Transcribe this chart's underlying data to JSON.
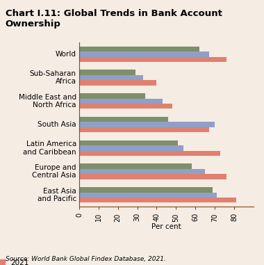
{
  "title": "Chart I.11: Global Trends in Bank Account Ownership",
  "xlabel": "Per cent",
  "source": "Source: World Bank Global Findex Database, 2021.",
  "categories": [
    "East Asia\nand Pacific",
    "Europe and\nCentral Asia",
    "Latin America\nand Caribbean",
    "South Asia",
    "Middle East and\nNorth Africa",
    "Sub-Saharan\nAfrica",
    "World"
  ],
  "series": {
    "2014": [
      69,
      58,
      51,
      46,
      34,
      29,
      62
    ],
    "2017": [
      71,
      65,
      54,
      70,
      43,
      33,
      67
    ],
    "2021": [
      81,
      76,
      73,
      67,
      48,
      40,
      76
    ]
  },
  "colors": {
    "2014": "#7d8f6b",
    "2017": "#8fa0c8",
    "2021": "#e08070"
  },
  "xlim": [
    0,
    90
  ],
  "xticks": [
    0,
    10,
    20,
    30,
    40,
    50,
    60,
    70,
    80
  ],
  "background_color": "#f5ece4",
  "bar_height": 0.22,
  "title_fontsize": 9.5,
  "label_fontsize": 7.5,
  "tick_fontsize": 7,
  "legend_fontsize": 7.5,
  "source_fontsize": 6.5
}
